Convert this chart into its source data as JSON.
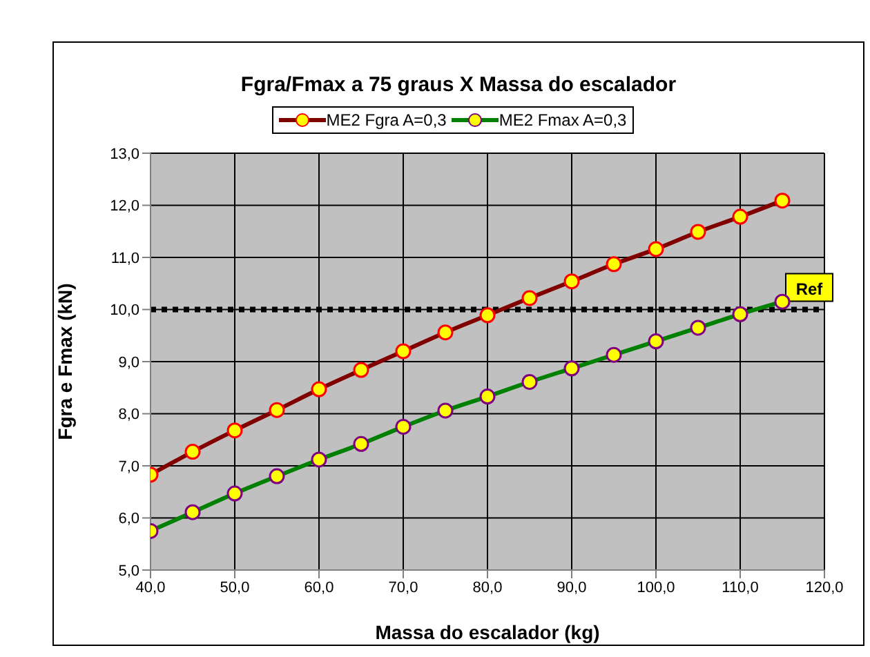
{
  "chart_data": {
    "type": "line",
    "title": "Fgra/Fmax a 75 graus  X  Massa do escalador",
    "xlabel": "Massa do escalador (kg)",
    "ylabel": "Fgra e Fmax (kN)",
    "x": [
      40,
      45,
      50,
      55,
      60,
      65,
      70,
      75,
      80,
      85,
      90,
      95,
      100,
      105,
      110,
      115
    ],
    "series": [
      {
        "name": "ME2 Fgra A=0,3",
        "color": "#800000",
        "values": [
          6.83,
          7.27,
          7.68,
          8.07,
          8.47,
          8.84,
          9.2,
          9.56,
          9.89,
          10.22,
          10.54,
          10.87,
          11.16,
          11.49,
          11.78,
          12.09
        ]
      },
      {
        "name": "ME2 Fmax A=0,3",
        "color": "#008000",
        "values": [
          5.75,
          6.11,
          6.47,
          6.8,
          7.12,
          7.42,
          7.75,
          8.06,
          8.33,
          8.61,
          8.87,
          9.13,
          9.39,
          9.65,
          9.91,
          10.15
        ]
      }
    ],
    "xlim": [
      40,
      120
    ],
    "xticks": [
      {
        "value": 40,
        "label": "40,0"
      },
      {
        "value": 50,
        "label": "50,0"
      },
      {
        "value": 60,
        "label": "60,0"
      },
      {
        "value": 70,
        "label": "70,0"
      },
      {
        "value": 80,
        "label": "80,0"
      },
      {
        "value": 90,
        "label": "90,0"
      },
      {
        "value": 100,
        "label": "100,0"
      },
      {
        "value": 110,
        "label": "110,0"
      },
      {
        "value": 120,
        "label": "120,0"
      }
    ],
    "ylim": [
      5,
      13
    ],
    "yticks": [
      {
        "value": 5,
        "label": "5,0"
      },
      {
        "value": 6,
        "label": "6,0"
      },
      {
        "value": 7,
        "label": "7,0"
      },
      {
        "value": 8,
        "label": "8,0"
      },
      {
        "value": 9,
        "label": "9,0"
      },
      {
        "value": 10,
        "label": "10,0"
      },
      {
        "value": 11,
        "label": "11,0"
      },
      {
        "value": 12,
        "label": "12,0"
      },
      {
        "value": 13,
        "label": "13,0"
      }
    ],
    "ref_lines": [
      {
        "axis": "y",
        "value": 10,
        "label": "Ref",
        "color": "#000000",
        "line_style": "dotted"
      }
    ],
    "grid": true,
    "legend": "top",
    "marker": "circle",
    "line_style": "solid"
  }
}
